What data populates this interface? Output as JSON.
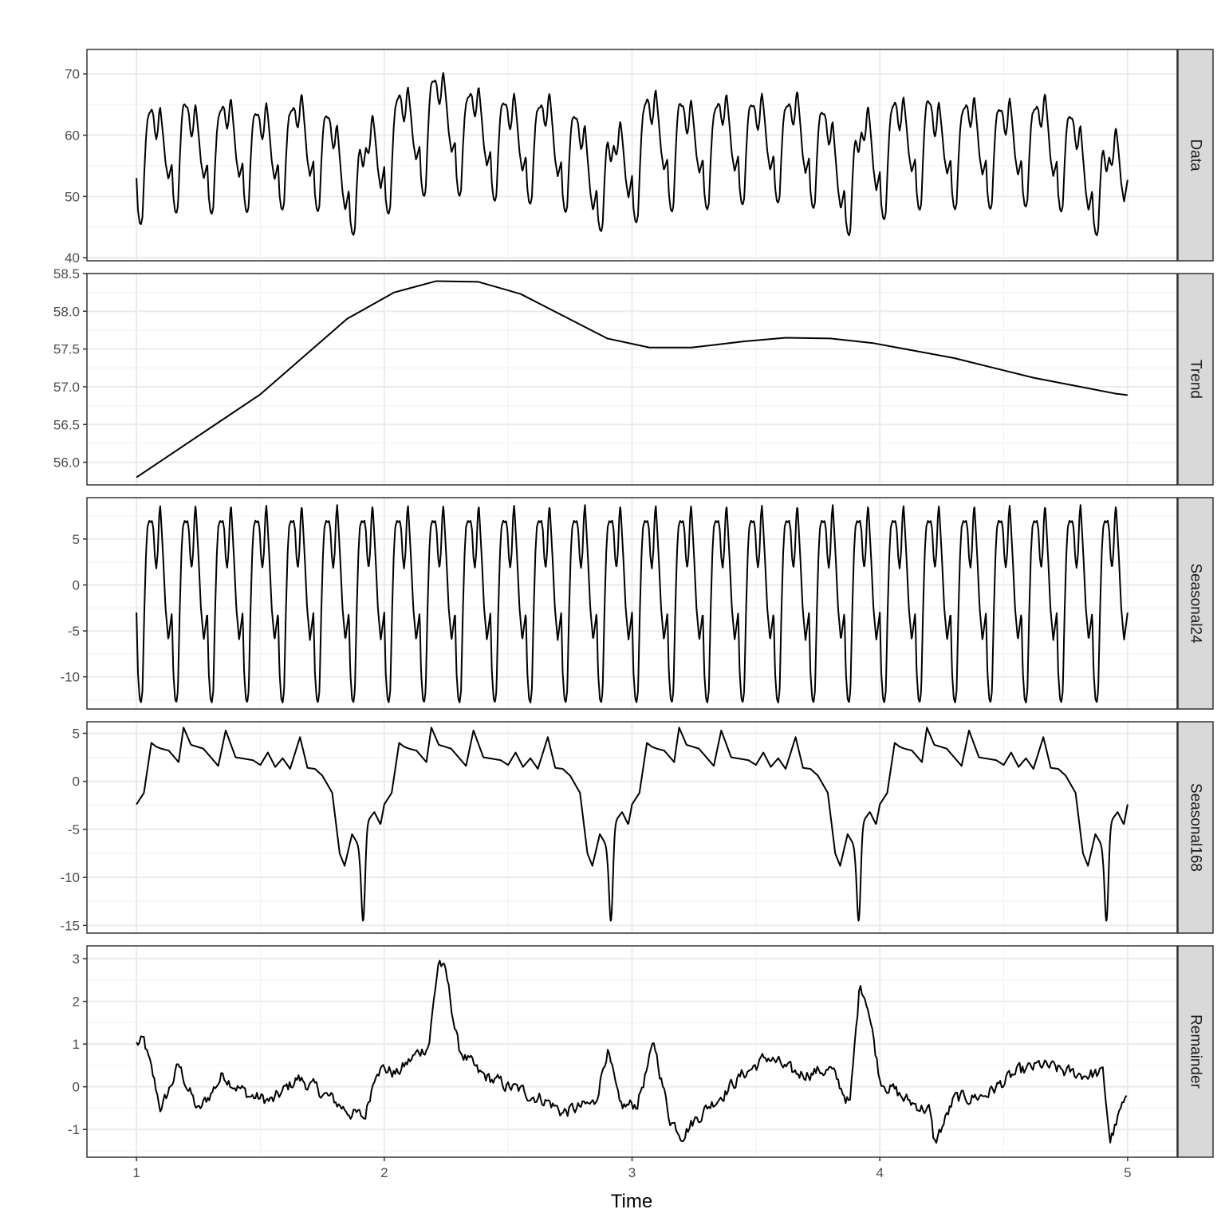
{
  "chart_data": {
    "type": "line",
    "xlabel": "Time",
    "x_ticks": [
      1,
      2,
      3,
      4,
      5
    ],
    "xlim": [
      0.8,
      5.2
    ],
    "panels": [
      {
        "name": "Data",
        "ylim": [
          39.5,
          74
        ],
        "y_ticks": [
          40,
          50,
          60,
          70
        ],
        "y_tick_labels": [
          "40",
          "50",
          "60",
          "70"
        ],
        "generator": "data",
        "params": {
          "n": 672,
          "freq": 168
        }
      },
      {
        "name": "Trend",
        "ylim": [
          55.7,
          58.5
        ],
        "y_ticks": [
          56.0,
          56.5,
          57.0,
          57.5,
          58.0,
          58.5
        ],
        "y_tick_labels": [
          "56.0",
          "56.5",
          "57.0",
          "57.5",
          "58.0",
          "58.5"
        ],
        "generator": "points",
        "points": [
          [
            1.0,
            55.8
          ],
          [
            1.5,
            56.9
          ],
          [
            1.85,
            57.9
          ],
          [
            2.04,
            58.25
          ],
          [
            2.21,
            58.4
          ],
          [
            2.38,
            58.39
          ],
          [
            2.55,
            58.23
          ],
          [
            2.9,
            57.64
          ],
          [
            3.07,
            57.52
          ],
          [
            3.24,
            57.52
          ],
          [
            3.45,
            57.6
          ],
          [
            3.62,
            57.65
          ],
          [
            3.8,
            57.64
          ],
          [
            3.97,
            57.58
          ],
          [
            4.3,
            57.38
          ],
          [
            4.62,
            57.12
          ],
          [
            4.95,
            56.91
          ],
          [
            5.0,
            56.89
          ]
        ]
      },
      {
        "name": "Seasonal24",
        "ylim": [
          -13.5,
          9.5
        ],
        "y_ticks": [
          -10,
          -5,
          0,
          5
        ],
        "y_tick_labels": [
          "-10",
          "-5",
          "0",
          "5"
        ],
        "generator": "seasonal24",
        "params": {
          "period_in_x": 0.142857,
          "min": -12.8,
          "plateau": 7.0,
          "peak": 8.7
        }
      },
      {
        "name": "Seasonal168",
        "ylim": [
          -15.8,
          6.2
        ],
        "y_ticks": [
          -15,
          -10,
          -5,
          0,
          5
        ],
        "y_tick_labels": [
          "-15",
          "-10",
          "-5",
          "0",
          "5"
        ],
        "generator": "seasonal168",
        "params": {
          "period_in_x": 1.0,
          "weekday_level": 3.0,
          "sat_level": -5.8,
          "sun_min": -15.2
        }
      },
      {
        "name": "Remainder",
        "ylim": [
          -1.65,
          3.3
        ],
        "y_ticks": [
          -1,
          0,
          1,
          2,
          3
        ],
        "y_tick_labels": [
          "-1",
          "0",
          "1",
          "2",
          "3"
        ],
        "generator": "remainder",
        "points": [
          [
            1.0,
            1.0
          ],
          [
            1.03,
            1.05
          ],
          [
            1.1,
            -0.55
          ],
          [
            1.17,
            0.5
          ],
          [
            1.25,
            -0.6
          ],
          [
            1.35,
            0.3
          ],
          [
            1.45,
            -0.2
          ],
          [
            1.55,
            -0.35
          ],
          [
            1.65,
            0.2
          ],
          [
            1.75,
            -0.15
          ],
          [
            1.85,
            -0.55
          ],
          [
            1.92,
            -0.75
          ],
          [
            1.97,
            0.5
          ],
          [
            2.05,
            0.3
          ],
          [
            2.12,
            0.7
          ],
          [
            2.18,
            1.0
          ],
          [
            2.22,
            3.0
          ],
          [
            2.25,
            2.6
          ],
          [
            2.3,
            0.9
          ],
          [
            2.38,
            0.3
          ],
          [
            2.5,
            0.0
          ],
          [
            2.65,
            -0.3
          ],
          [
            2.72,
            -0.6
          ],
          [
            2.85,
            -0.4
          ],
          [
            2.9,
            0.9
          ],
          [
            2.95,
            -0.5
          ],
          [
            3.02,
            -0.4
          ],
          [
            3.09,
            1.0
          ],
          [
            3.15,
            -0.7
          ],
          [
            3.2,
            -1.1
          ],
          [
            3.3,
            -0.5
          ],
          [
            3.45,
            0.3
          ],
          [
            3.55,
            0.7
          ],
          [
            3.65,
            0.3
          ],
          [
            3.8,
            0.4
          ],
          [
            3.88,
            -0.4
          ],
          [
            3.92,
            2.45
          ],
          [
            3.95,
            2.0
          ],
          [
            4.0,
            0.2
          ],
          [
            4.1,
            -0.3
          ],
          [
            4.2,
            -0.55
          ],
          [
            4.22,
            -1.35
          ],
          [
            4.3,
            -0.3
          ],
          [
            4.42,
            -0.2
          ],
          [
            4.55,
            0.3
          ],
          [
            4.65,
            0.5
          ],
          [
            4.78,
            0.3
          ],
          [
            4.9,
            0.3
          ],
          [
            4.93,
            -1.25
          ],
          [
            4.98,
            -0.45
          ],
          [
            5.0,
            -0.4
          ]
        ],
        "params": {
          "noise": 0.14
        }
      }
    ]
  }
}
